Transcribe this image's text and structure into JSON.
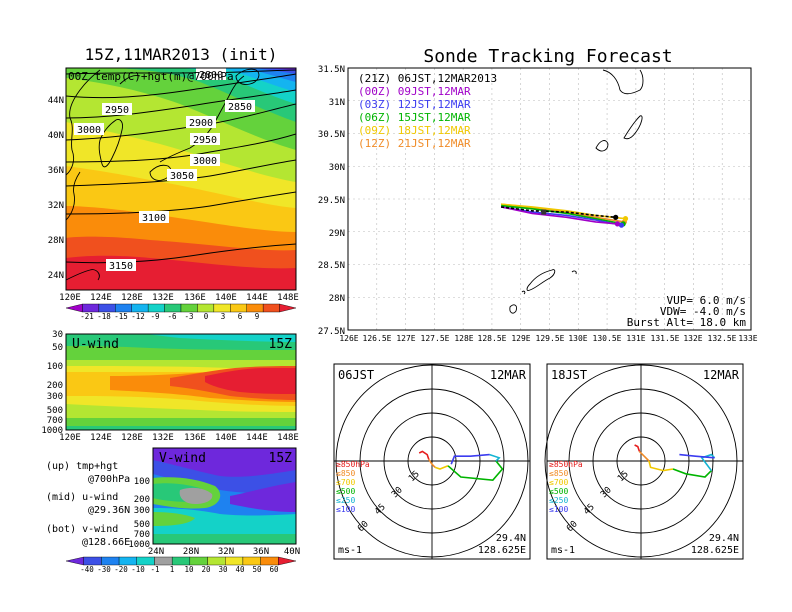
{
  "left_panel": {
    "title": "15Z,11MAR2013 (init)",
    "map_label": "00Z temp(C)+hgt(m)@700hPa",
    "lat_ticks": [
      "44N",
      "40N",
      "36N",
      "32N",
      "28N",
      "24N"
    ],
    "lon_ticks": [
      "120E",
      "124E",
      "128E",
      "132E",
      "136E",
      "140E",
      "144E",
      "148E"
    ],
    "contour_labels": [
      "2800",
      "2850",
      "2900",
      "2950",
      "2950",
      "3000",
      "3000",
      "3050",
      "3100",
      "3150"
    ],
    "colorbar_ticks": [
      "-21",
      "-18",
      "-15",
      "-12",
      "-9",
      "-6",
      "-3",
      "0",
      "3",
      "6",
      "9"
    ],
    "colorbar_colors": [
      "#a000c8",
      "#6e28dc",
      "#3c50e6",
      "#1e82f0",
      "#14b4f0",
      "#14d2c8",
      "#28c878",
      "#64d23c",
      "#b4e632",
      "#f0e628",
      "#fac814",
      "#fa8c0a",
      "#f0501e",
      "#e61e32"
    ]
  },
  "u_panel": {
    "label": "U-wind",
    "time": "15Z",
    "p_ticks": [
      "30",
      "50",
      "100",
      "200",
      "300",
      "500",
      "700",
      "1000"
    ],
    "lon_ticks": [
      "120E",
      "124E",
      "128E",
      "132E",
      "136E",
      "140E",
      "144E",
      "148E"
    ]
  },
  "v_panel": {
    "label": "V-wind",
    "time": "15Z",
    "p_ticks": [
      "100",
      "200",
      "300",
      "500",
      "700",
      "1000"
    ],
    "lat_ticks": [
      "24N",
      "28N",
      "32N",
      "36N",
      "40N"
    ],
    "colorbar_ticks": [
      "-40",
      "-30",
      "-20",
      "-10",
      "-1",
      "1",
      "10",
      "20",
      "30",
      "40",
      "50",
      "60"
    ],
    "colorbar_colors": [
      "#6e28dc",
      "#3c50e6",
      "#1e82f0",
      "#14b4f0",
      "#14d2c8",
      "#a0a0a0",
      "#28c878",
      "#64d23c",
      "#b4e632",
      "#f0e628",
      "#fac814",
      "#fa8c0a",
      "#e61e32"
    ]
  },
  "legend_notes": [
    {
      "a": "(up) tmp+hgt",
      "b": "@700hPa"
    },
    {
      "a": "(mid) u-wind",
      "b": "@29.36N"
    },
    {
      "a": "(bot) v-wind",
      "b": "@128.66E"
    }
  ],
  "track_panel": {
    "title": "Sonde Tracking Forecast",
    "lat_ticks": [
      "31.5N",
      "31N",
      "30.5N",
      "30N",
      "29.5N",
      "29N",
      "28.5N",
      "28N",
      "27.5N"
    ],
    "lon_ticks": [
      "126E",
      "126.5E",
      "127E",
      "127.5E",
      "128E",
      "128.5E",
      "129E",
      "129.5E",
      "130E",
      "130.5E",
      "131E",
      "131.5E",
      "132E",
      "132.5E",
      "133E"
    ],
    "legend": [
      {
        "text": "(21Z) 06JST,12MAR2013",
        "color": "#000000"
      },
      {
        "text": "(00Z) 09JST,12MAR",
        "color": "#a000c8"
      },
      {
        "text": "(03Z) 12JST,12MAR",
        "color": "#3c3cf0"
      },
      {
        "text": "(06Z) 15JST,12MAR",
        "color": "#00b400"
      },
      {
        "text": "(09Z) 18JST,12MAR",
        "color": "#f0c800"
      },
      {
        "text": "(12Z) 21JST,12MAR",
        "color": "#f08c28"
      }
    ],
    "params": [
      "VUP= 6.0 m/s",
      "VDW= -4.0 m/s",
      "Burst Alt= 18.0 km"
    ]
  },
  "hodographs": [
    {
      "time": "06JST",
      "date": "12MAR",
      "lat": "29.4N",
      "lon": "128.625E",
      "unit": "ms-1",
      "rings": [
        "15",
        "30",
        "45",
        "60"
      ]
    },
    {
      "time": "18JST",
      "date": "12MAR",
      "lat": "29.4N",
      "lon": "128.625E",
      "unit": "ms-1",
      "rings": [
        "15",
        "30",
        "45",
        "60"
      ]
    }
  ],
  "hodo_legend": [
    {
      "text": "≥850hPa",
      "color": "#e61e1e"
    },
    {
      "text": "≤850",
      "color": "#f08c28"
    },
    {
      "text": "≤700",
      "color": "#f0c800"
    },
    {
      "text": "≤500",
      "color": "#00b400"
    },
    {
      "text": "≤250",
      "color": "#14b4d2"
    },
    {
      "text": "≤100",
      "color": "#3c3cf0"
    }
  ],
  "chart_data": [
    {
      "type": "heatmap",
      "title": "15Z,11MAR2013 (init)",
      "subtitle": "00Z temp(C)+hgt(m)@700hPa",
      "xlim": [
        120,
        149
      ],
      "ylim": [
        22,
        47
      ],
      "colorbar": [
        -21,
        -18,
        -15,
        -12,
        -9,
        -6,
        -3,
        0,
        3,
        6,
        9
      ],
      "contours": [
        2800,
        2850,
        2900,
        2950,
        3000,
        3050,
        3100,
        3150
      ]
    },
    {
      "type": "line",
      "title": "Sonde Tracking Forecast",
      "xlim": [
        126,
        133
      ],
      "ylim": [
        27.5,
        31.5
      ],
      "series": [
        {
          "name": "(21Z) 06JST,12MAR2013",
          "x": [
            128.66,
            129.2,
            129.8,
            130.3,
            130.65
          ],
          "y": [
            29.38,
            29.32,
            29.3,
            29.25,
            29.22
          ]
        },
        {
          "name": "(00Z) 09JST,12MAR",
          "x": [
            128.66,
            129.2,
            129.8,
            130.3,
            130.68
          ],
          "y": [
            29.38,
            29.28,
            29.22,
            29.15,
            29.12
          ]
        },
        {
          "name": "(03Z) 12JST,12MAR",
          "x": [
            128.66,
            129.2,
            129.8,
            130.3,
            130.75
          ],
          "y": [
            29.38,
            29.3,
            29.25,
            29.18,
            29.1
          ]
        },
        {
          "name": "(06Z) 15JST,12MAR",
          "x": [
            128.66,
            129.2,
            129.8,
            130.3,
            130.78
          ],
          "y": [
            29.4,
            29.35,
            29.28,
            29.2,
            29.12
          ]
        },
        {
          "name": "(09Z) 18JST,12MAR",
          "x": [
            128.66,
            129.2,
            129.8,
            130.3,
            130.82
          ],
          "y": [
            29.42,
            29.38,
            29.32,
            29.25,
            29.2
          ]
        },
        {
          "name": "(12Z) 21JST,12MAR",
          "x": [
            128.66,
            129.2,
            129.8,
            130.3,
            130.8
          ],
          "y": [
            29.42,
            29.37,
            29.3,
            29.22,
            29.15
          ]
        }
      ]
    }
  ]
}
